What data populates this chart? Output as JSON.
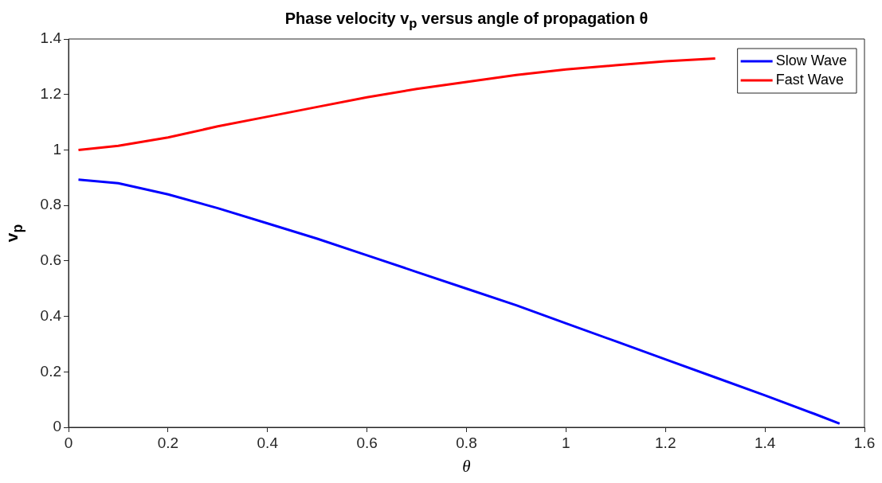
{
  "chart_data": {
    "type": "line",
    "title": "Phase velocity v$_{p}$ versus angle of propagation θ",
    "xlabel": "θ",
    "ylabel": "v$_{p}$",
    "xlim": [
      0,
      1.6
    ],
    "ylim": [
      0,
      1.4
    ],
    "xticks": [
      0,
      0.2,
      0.4,
      0.6,
      0.8,
      1,
      1.2,
      1.4,
      1.6
    ],
    "yticks": [
      0,
      0.2,
      0.4,
      0.6,
      0.8,
      1,
      1.2,
      1.4
    ],
    "grid": false,
    "legend": "top right",
    "marker": "none",
    "line_style": "solid",
    "series": [
      {
        "name": "Slow Wave",
        "color": "#0000ff",
        "x": [
          0.02,
          0.1,
          0.2,
          0.3,
          0.4,
          0.5,
          0.6,
          0.7,
          0.8,
          0.9,
          1,
          1.1,
          1.2,
          1.3,
          1.4,
          1.5,
          1.55
        ],
        "values": [
          0.893,
          0.88,
          0.84,
          0.79,
          0.735,
          0.68,
          0.62,
          0.56,
          0.5,
          0.44,
          0.375,
          0.31,
          0.245,
          0.18,
          0.115,
          0.048,
          0.013
        ]
      },
      {
        "name": "Fast Wave",
        "color": "#ff0000",
        "x": [
          0.02,
          0.1,
          0.2,
          0.3,
          0.4,
          0.5,
          0.6,
          0.7,
          0.8,
          0.9,
          1,
          1.1,
          1.2,
          1.3
        ],
        "values": [
          1.0,
          1.015,
          1.045,
          1.085,
          1.12,
          1.155,
          1.19,
          1.22,
          1.245,
          1.27,
          1.29,
          1.305,
          1.32,
          1.33
        ]
      }
    ]
  }
}
